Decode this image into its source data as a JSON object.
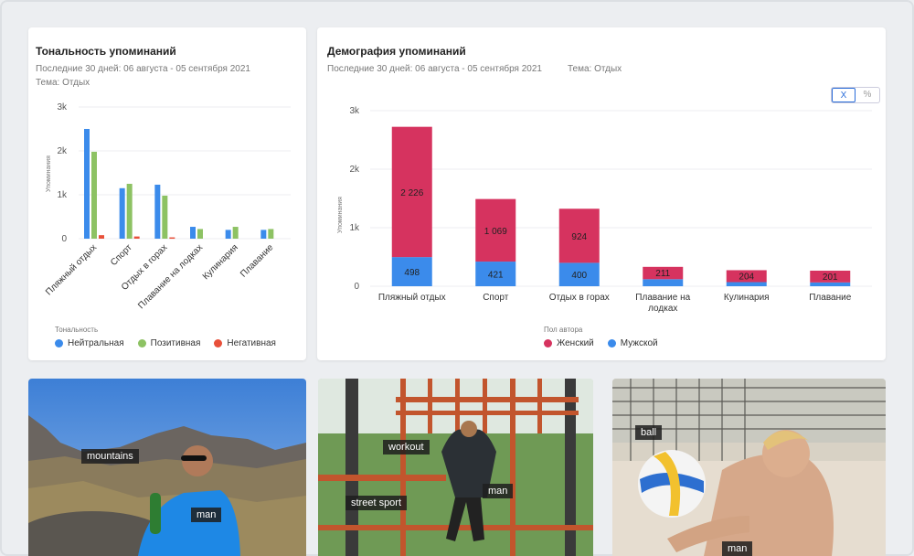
{
  "sentiment": {
    "title": "Тональность упоминаний",
    "period": "Последние 30 дней: 06 августа - 05 сентября 2021",
    "topic": "Тема: Отдых",
    "legend_title": "Тональность",
    "legend": [
      {
        "label": "Нейтральная",
        "color": "#3b8beb"
      },
      {
        "label": "Позитивная",
        "color": "#8dc263"
      },
      {
        "label": "Негативная",
        "color": "#e8503a"
      }
    ]
  },
  "demography": {
    "title": "Демография упоминаний",
    "period": "Последние 30 дней: 06 августа - 05 сентября 2021",
    "topic": "Тема: Отдых",
    "toggle": [
      "X",
      "%"
    ],
    "legend_title": "Пол автора",
    "legend": [
      {
        "label": "Женский",
        "color": "#d6335f"
      },
      {
        "label": "Мужской",
        "color": "#3b8beb"
      }
    ]
  },
  "chart_data": [
    {
      "type": "bar",
      "ylabel": "Упоминания",
      "yticks": [
        "0",
        "1k",
        "2k",
        "3k"
      ],
      "ylim": [
        0,
        3000
      ],
      "categories": [
        "Пляжный отдых",
        "Спорт",
        "Отдых в горах",
        "Плавание на лодках",
        "Кулинария",
        "Плавание"
      ],
      "series": [
        {
          "name": "Нейтральная",
          "color": "#3b8beb",
          "values": [
            2500,
            1150,
            1230,
            270,
            200,
            200
          ]
        },
        {
          "name": "Позитивная",
          "color": "#8dc263",
          "values": [
            1980,
            1250,
            980,
            220,
            270,
            220
          ]
        },
        {
          "name": "Негативная",
          "color": "#e8503a",
          "values": [
            80,
            50,
            30,
            0,
            0,
            0
          ]
        }
      ],
      "grid": true
    },
    {
      "type": "bar",
      "stacked": true,
      "ylabel": "Упоминания",
      "yticks": [
        "0",
        "1k",
        "2k",
        "3k"
      ],
      "ylim": [
        0,
        3000
      ],
      "categories": [
        "Пляжный отдых",
        "Спорт",
        "Отдых в горах",
        "Плавание на лодках",
        "Кулинария",
        "Плавание"
      ],
      "category_lines": [
        [
          "Пляжный отдых"
        ],
        [
          "Спорт"
        ],
        [
          "Отдых в горах"
        ],
        [
          "Плавание на",
          "лодках"
        ],
        [
          "Кулинария"
        ],
        [
          "Плавание"
        ]
      ],
      "series": [
        {
          "name": "Мужской",
          "color": "#3b8beb",
          "values": [
            498,
            421,
            400,
            120,
            70,
            65
          ],
          "labels": [
            "498",
            "421",
            "400",
            "",
            "",
            ""
          ]
        },
        {
          "name": "Женский",
          "color": "#d6335f",
          "values": [
            2226,
            1069,
            924,
            211,
            204,
            201
          ],
          "labels": [
            "2 226",
            "1 069",
            "924",
            "211",
            "204",
            "201"
          ]
        }
      ],
      "grid": true
    }
  ],
  "photos": [
    {
      "tags": [
        "mountains",
        "man"
      ]
    },
    {
      "tags": [
        "workout",
        "man",
        "street sport"
      ]
    },
    {
      "tags": [
        "ball",
        "man"
      ]
    }
  ]
}
